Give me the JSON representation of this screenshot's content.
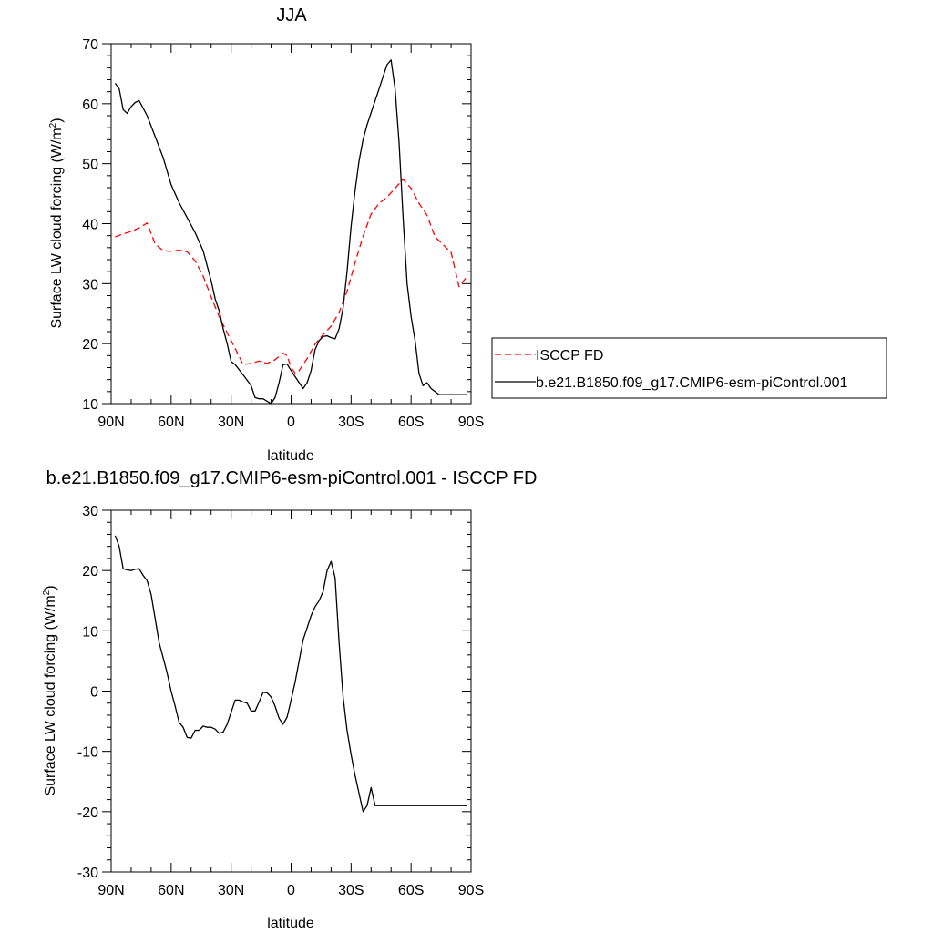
{
  "chart_data": [
    {
      "type": "line",
      "title": "JJA",
      "xlabel": "latitude",
      "ylabel": "Surface LW cloud forcing (W/m",
      "ylabel_sup": "2",
      "ylabel_close": ")",
      "xlim": [
        90,
        -90
      ],
      "ylim": [
        10,
        70
      ],
      "x_ticks": [
        90,
        60,
        30,
        0,
        -30,
        -60,
        -90
      ],
      "x_tick_labels": [
        "90N",
        "60N",
        "30N",
        "0",
        "30S",
        "60S",
        "90S"
      ],
      "y_ticks": [
        10,
        20,
        30,
        40,
        50,
        60,
        70
      ],
      "y_tick_labels": [
        "10",
        "20",
        "30",
        "40",
        "50",
        "60",
        "70"
      ],
      "legend_position": "right",
      "series": [
        {
          "name": "ISCCP FD",
          "color": "#ff0000",
          "dash": "dashed",
          "x": [
            88,
            84,
            80,
            76,
            72,
            68,
            64,
            60,
            56,
            52,
            48,
            44,
            40,
            36,
            32,
            28,
            24,
            20,
            16,
            12,
            8,
            4,
            2,
            0,
            -2,
            -4,
            -8,
            -12,
            -16,
            -20,
            -24,
            -28,
            -32,
            -36,
            -40,
            -44,
            -48,
            -52,
            -56,
            -60,
            -64,
            -68,
            -72,
            -76,
            -80,
            -84,
            -88
          ],
          "y": [
            37.8,
            38.3,
            38.7,
            39.3,
            40.1,
            36.6,
            35.5,
            35.4,
            35.6,
            35.3,
            33.8,
            31.3,
            27.8,
            24.5,
            21.8,
            19.2,
            16.5,
            16.7,
            17.1,
            16.7,
            17.3,
            18.4,
            18.0,
            16.0,
            15.1,
            15.5,
            17.5,
            19.9,
            21.5,
            22.9,
            25.2,
            28.7,
            33.5,
            37.9,
            41.6,
            43.4,
            44.4,
            45.9,
            47.4,
            45.9,
            43.4,
            41.4,
            37.8,
            36.5,
            35.2,
            29.5,
            31.2
          ]
        },
        {
          "name": "b.e21.B1850.f09_g17.CMIP6-esm-piControl.001",
          "color": "#000000",
          "dash": "solid",
          "x": [
            88,
            86,
            84,
            82,
            80,
            78,
            76,
            72,
            68,
            64,
            60,
            56,
            52,
            48,
            44,
            42,
            40,
            38,
            36,
            34,
            32,
            30,
            28,
            24,
            20,
            18,
            16,
            14,
            12,
            10,
            8,
            6,
            4,
            2,
            0,
            -2,
            -4,
            -6,
            -8,
            -10,
            -12,
            -14,
            -16,
            -18,
            -20,
            -22,
            -24,
            -26,
            -28,
            -30,
            -32,
            -34,
            -36,
            -38,
            -40,
            -42,
            -44,
            -46,
            -48,
            -50,
            -52,
            -54,
            -56,
            -58,
            -60,
            -62,
            -64,
            -66,
            -68,
            -70,
            -72,
            -74,
            -76,
            -78,
            -80,
            -82,
            -84,
            -86,
            -88
          ],
          "y": [
            63.4,
            62.5,
            59.0,
            58.4,
            59.5,
            60.2,
            60.5,
            58.0,
            54.5,
            51.0,
            46.5,
            43.5,
            41.0,
            38.5,
            35.5,
            33.0,
            30.5,
            27.5,
            25.5,
            22.5,
            20.0,
            17.0,
            16.5,
            14.8,
            13.0,
            11.0,
            10.8,
            10.8,
            10.4,
            10.0,
            11.0,
            13.5,
            16.5,
            16.6,
            15.5,
            14.5,
            13.5,
            12.5,
            13.5,
            15.5,
            19.0,
            20.5,
            21.2,
            21.3,
            21.0,
            20.8,
            22.5,
            26.0,
            32.0,
            39.5,
            45.5,
            50.5,
            54.0,
            56.5,
            58.5,
            60.5,
            62.5,
            64.5,
            66.5,
            67.3,
            62.5,
            53.5,
            41.0,
            30.0,
            24.5,
            20.5,
            15.0,
            13.0,
            13.5,
            12.5,
            12.0,
            11.5,
            11.5,
            11.5,
            11.5,
            11.5,
            11.5,
            11.5,
            11.5
          ]
        }
      ]
    },
    {
      "type": "line",
      "title": "b.e21.B1850.f09_g17.CMIP6-esm-piControl.001 - ISCCP FD",
      "xlabel": "latitude",
      "ylabel": "Surface LW cloud forcing (W/m",
      "ylabel_sup": "2",
      "ylabel_close": ")",
      "xlim": [
        90,
        -90
      ],
      "ylim": [
        -30,
        30
      ],
      "x_ticks": [
        90,
        60,
        30,
        0,
        -30,
        -60,
        -90
      ],
      "x_tick_labels": [
        "90N",
        "60N",
        "30N",
        "0",
        "30S",
        "60S",
        "90S"
      ],
      "y_ticks": [
        -30,
        -20,
        -10,
        0,
        10,
        20,
        30
      ],
      "y_tick_labels": [
        "-30",
        "-20",
        "-10",
        "0",
        "10",
        "20",
        "30"
      ],
      "series": [
        {
          "color": "#000000",
          "dash": "solid",
          "x": [
            88,
            86,
            84,
            82,
            80,
            78,
            76,
            74,
            72,
            70,
            68,
            66,
            64,
            62,
            60,
            58,
            56,
            54,
            52,
            50,
            48,
            46,
            44,
            42,
            40,
            38,
            36,
            34,
            32,
            30,
            28,
            26,
            24,
            22,
            20,
            18,
            16,
            14,
            12,
            10,
            8,
            6,
            4,
            2,
            0,
            -2,
            -4,
            -6,
            -8,
            -10,
            -12,
            -14,
            -16,
            -18,
            -20,
            -22,
            -24,
            -26,
            -28,
            -30,
            -32,
            -34,
            -36,
            -38,
            -40,
            -42,
            -44,
            -46,
            -48,
            -50,
            -52,
            -54,
            -56,
            -58,
            -60,
            -62,
            -64,
            -66,
            -68,
            -70,
            -72,
            -74,
            -76,
            -78,
            -80,
            -82,
            -84,
            -86,
            -88
          ],
          "y": [
            25.8,
            24.0,
            20.3,
            20.1,
            20.0,
            20.2,
            20.3,
            19.2,
            18.3,
            16.0,
            12.0,
            8.0,
            5.5,
            3.0,
            0.0,
            -2.5,
            -5.2,
            -6.0,
            -7.7,
            -7.8,
            -6.5,
            -6.5,
            -5.8,
            -6.0,
            -6.0,
            -6.3,
            -7.0,
            -6.8,
            -5.5,
            -3.5,
            -1.5,
            -1.5,
            -1.8,
            -2.0,
            -3.3,
            -3.3,
            -1.8,
            -0.2,
            -0.3,
            -1.0,
            -2.5,
            -4.5,
            -5.5,
            -4.3,
            -1.5,
            1.5,
            5.0,
            8.5,
            10.5,
            12.5,
            14.0,
            15.0,
            16.5,
            20.0,
            21.5,
            18.8,
            8.0,
            -1.0,
            -6.5,
            -10.5,
            -14.0,
            -17.0,
            -20.0,
            -19.0,
            -16.0,
            -19.0,
            -19.0,
            -19.0,
            -19.0,
            -19.0,
            -19.0,
            -19.0,
            -19.0,
            -19.0,
            -19.0,
            -19.0,
            -19.0,
            -19.0,
            -19.0,
            -19.0,
            -19.0,
            -19.0,
            -19.0,
            -19.0,
            -19.0,
            -19.0,
            -19.0,
            -19.0,
            -19.0
          ]
        }
      ]
    }
  ]
}
